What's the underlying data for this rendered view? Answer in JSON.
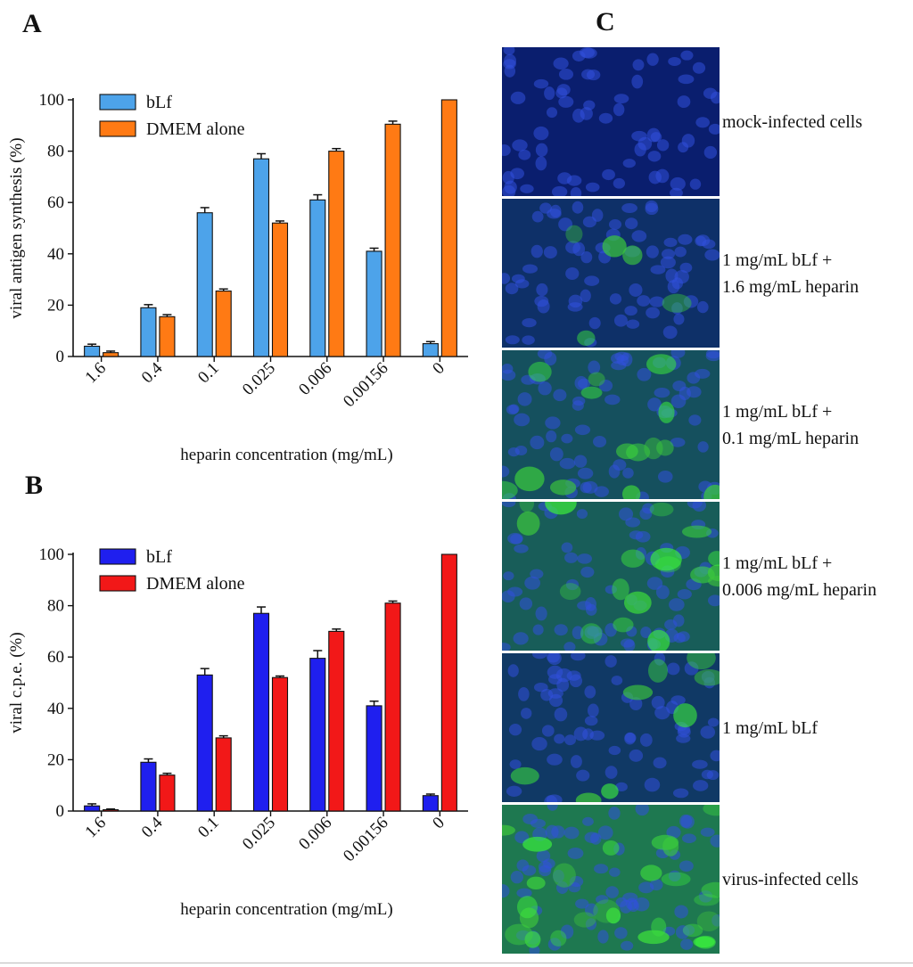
{
  "panels": {
    "A": "A",
    "B": "B",
    "C": "C"
  },
  "chart_data": [
    {
      "id": "A",
      "type": "bar",
      "title": "",
      "xlabel": "heparin concentration (mg/mL)",
      "ylabel": "viral antigen synthesis (%)",
      "ylim": [
        0,
        100
      ],
      "yticks": [
        "0",
        "20",
        "40",
        "60",
        "80",
        "100"
      ],
      "categories": [
        "1.6",
        "0.4",
        "0.1",
        "0.025",
        "0.006",
        "0.00156",
        "0"
      ],
      "legend_position": "top-left",
      "series": [
        {
          "name": "bLf",
          "color": "#4da3ea",
          "values": [
            4,
            19,
            56,
            77,
            61,
            41,
            5
          ],
          "errors": [
            0.8,
            1.2,
            2,
            2,
            2,
            1.2,
            0.8
          ]
        },
        {
          "name": "DMEM alone",
          "color": "#ff7a14",
          "values": [
            1.5,
            15.5,
            25.5,
            52,
            80,
            90.5,
            100
          ],
          "errors": [
            0.6,
            0.8,
            0.8,
            0.8,
            1,
            1.2,
            0
          ]
        }
      ]
    },
    {
      "id": "B",
      "type": "bar",
      "title": "",
      "xlabel": "heparin concentration (mg/mL)",
      "ylabel": "viral c.p.e. (%)",
      "ylim": [
        0,
        100
      ],
      "yticks": [
        "0",
        "20",
        "40",
        "60",
        "80",
        "100"
      ],
      "categories": [
        "1.6",
        "0.4",
        "0.1",
        "0.025",
        "0.006",
        "0.00156",
        "0"
      ],
      "legend_position": "top-left",
      "series": [
        {
          "name": "bLf",
          "color": "#1f1fef",
          "values": [
            2,
            19,
            53,
            77,
            59.5,
            41,
            6
          ],
          "errors": [
            0.8,
            1.3,
            2.5,
            2.5,
            3,
            1.8,
            0.6
          ]
        },
        {
          "name": "DMEM alone",
          "color": "#f21818",
          "values": [
            0.5,
            14,
            28.5,
            52,
            70,
            81,
            100
          ],
          "errors": [
            0.3,
            0.7,
            0.8,
            0.6,
            0.9,
            0.8,
            0
          ]
        }
      ]
    }
  ],
  "micrographs": [
    {
      "lines": [
        "mock-infected cells"
      ],
      "green": 0
    },
    {
      "lines": [
        "1 mg/mL bLf +",
        "1.6 mg/mL heparin"
      ],
      "green": 0.2
    },
    {
      "lines": [
        "1 mg/mL bLf +",
        "0.1 mg/mL heparin"
      ],
      "green": 0.55
    },
    {
      "lines": [
        "1 mg/mL bLf +",
        "0.006 mg/mL heparin"
      ],
      "green": 0.7
    },
    {
      "lines": [
        "1 mg/mL bLf"
      ],
      "green": 0.3
    },
    {
      "lines": [
        "virus-infected cells"
      ],
      "green": 1
    }
  ]
}
